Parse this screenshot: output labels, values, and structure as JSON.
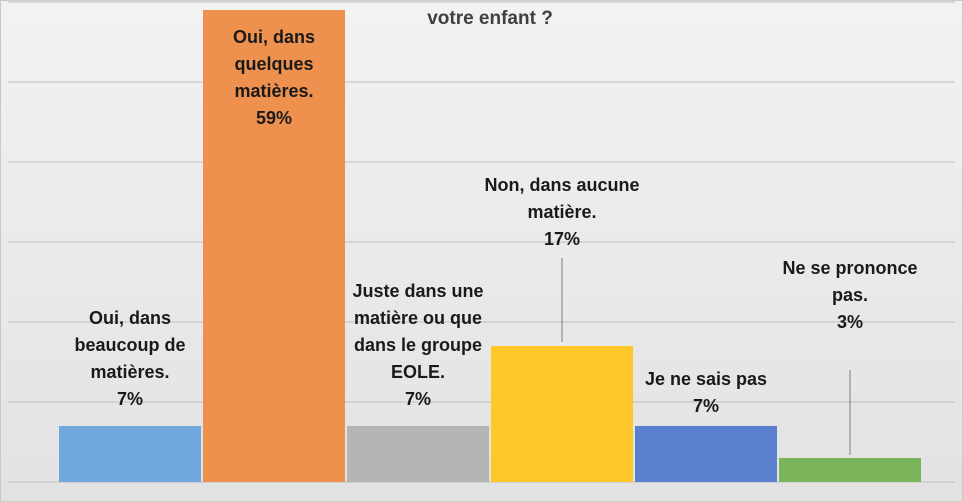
{
  "chart_data": {
    "type": "bar",
    "title": "votre enfant ?",
    "categories": [
      "Oui, dans beaucoup de matières.",
      "Oui, dans quelques matières.",
      "Juste dans une matière ou que dans le groupe EOLE.",
      "Non, dans aucune matière.",
      "Je ne sais pas",
      "Ne se prononce pas."
    ],
    "values": [
      7,
      59,
      7,
      17,
      7,
      3
    ],
    "value_labels": [
      "7%",
      "59%",
      "7%",
      "17%",
      "7%",
      "3%"
    ],
    "colors": [
      "#6fa8dc",
      "#ee914f",
      "#b4b4b4",
      "#ffc729",
      "#5b80d0",
      "#7ab55c"
    ],
    "ylim": [
      0,
      60
    ],
    "yticks": [
      0,
      10,
      20,
      30,
      40,
      50,
      60
    ],
    "grid": true
  }
}
